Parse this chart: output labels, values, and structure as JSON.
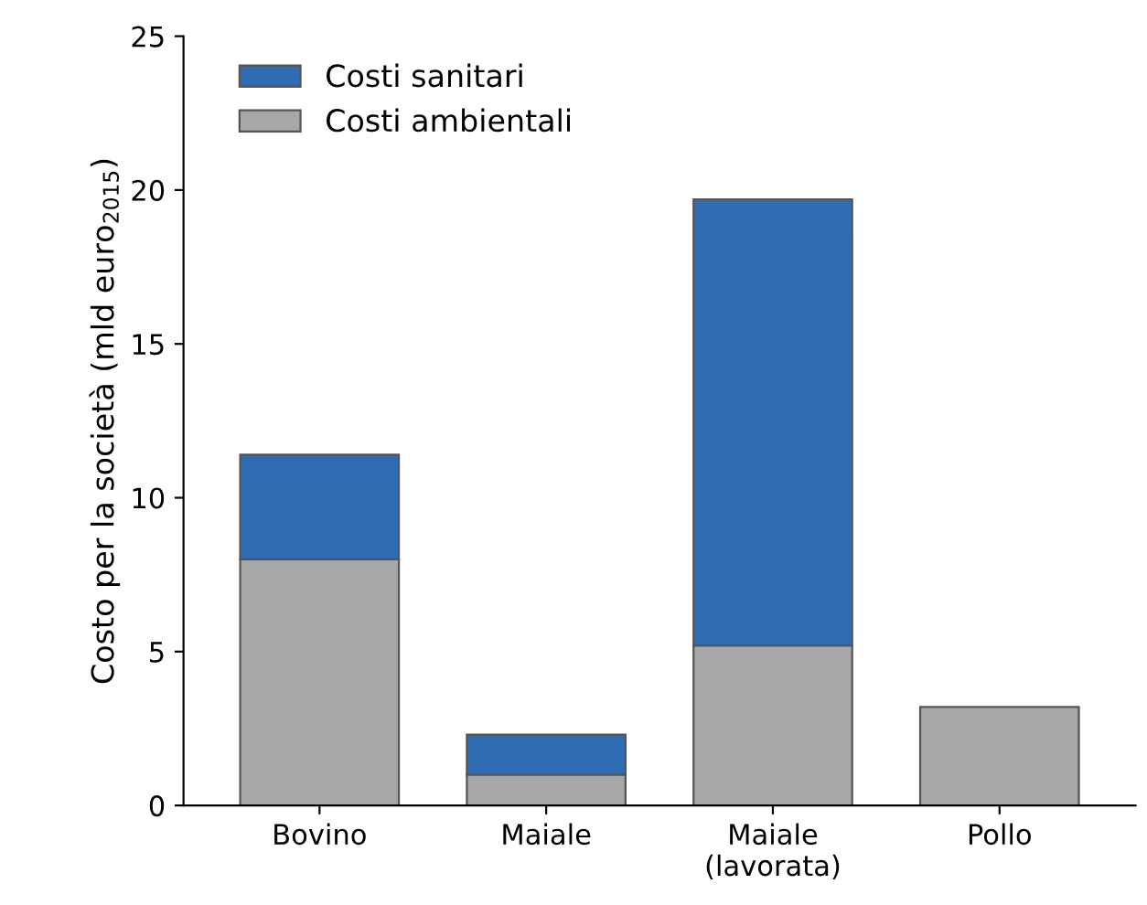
{
  "chart_data": {
    "type": "bar",
    "stacked": true,
    "ylabel": "Costo per la società (mld euro$_{2015}$)",
    "categories": [
      "Bovino",
      "Maiale",
      "Maiale\n(lavorata)",
      "Pollo"
    ],
    "series": [
      {
        "name": "Costi ambientali",
        "color": "#a8a8a8",
        "values": [
          8.0,
          1.0,
          5.2,
          3.2
        ]
      },
      {
        "name": "Costi sanitari",
        "color": "#2e6db4",
        "values": [
          3.4,
          1.3,
          14.5,
          null
        ]
      }
    ],
    "ylim": [
      0,
      25
    ],
    "yticks": [
      0,
      5,
      10,
      15,
      20,
      25
    ],
    "grid": false,
    "legend": "top left"
  }
}
